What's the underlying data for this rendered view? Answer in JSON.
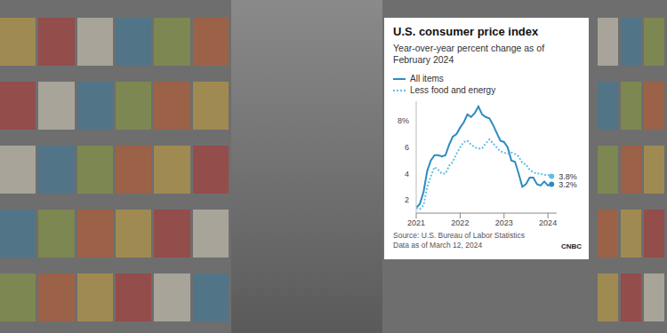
{
  "chart_data": {
    "type": "line",
    "title": "U.S. consumer price index",
    "subtitle": "Year-over-year percent change as of February 2024",
    "source": "Source: U.S. Bureau of Labor Statistics",
    "note": "Data as of March 12, 2024",
    "logo": "CNBC",
    "x": [
      2021.0,
      2021.083,
      2021.167,
      2021.25,
      2021.333,
      2021.417,
      2021.5,
      2021.583,
      2021.667,
      2021.75,
      2021.833,
      2021.917,
      2022.0,
      2022.083,
      2022.167,
      2022.25,
      2022.333,
      2022.417,
      2022.5,
      2022.583,
      2022.667,
      2022.75,
      2022.833,
      2022.917,
      2023.0,
      2023.083,
      2023.167,
      2023.25,
      2023.333,
      2023.417,
      2023.5,
      2023.583,
      2023.667,
      2023.75,
      2023.833,
      2023.917,
      2024.0,
      2024.083
    ],
    "series": [
      {
        "name": "All items",
        "color": "#2e8bc0",
        "line_style": "solid",
        "values": [
          1.4,
          1.7,
          2.6,
          4.2,
          5.0,
          5.4,
          5.4,
          5.3,
          5.4,
          6.2,
          6.8,
          7.0,
          7.5,
          7.9,
          8.5,
          8.3,
          8.6,
          9.1,
          8.5,
          8.3,
          8.2,
          7.7,
          7.1,
          6.5,
          6.4,
          6.0,
          5.0,
          4.9,
          4.0,
          3.0,
          3.2,
          3.7,
          3.7,
          3.2,
          3.1,
          3.4,
          3.1,
          3.2
        ]
      },
      {
        "name": "Less food and energy",
        "color": "#5fbfe3",
        "line_style": "dotted",
        "values": [
          1.4,
          1.3,
          1.6,
          3.0,
          3.8,
          4.5,
          4.3,
          4.0,
          4.0,
          4.6,
          4.9,
          5.5,
          6.0,
          6.4,
          6.5,
          6.2,
          6.0,
          5.9,
          5.9,
          6.3,
          6.6,
          6.3,
          6.0,
          5.7,
          5.6,
          5.5,
          5.6,
          5.5,
          5.3,
          4.8,
          4.7,
          4.3,
          4.1,
          4.0,
          4.0,
          3.9,
          3.9,
          3.8
        ]
      }
    ],
    "annotations": [
      {
        "text": "3.8%",
        "x": 2024.083,
        "y": 3.8,
        "color": "#5fbfe3"
      },
      {
        "text": "3.2%",
        "x": 2024.083,
        "y": 3.2,
        "color": "#2e8bc0"
      }
    ],
    "xlim": [
      2021,
      2024.2
    ],
    "xticks": [
      2021,
      2022,
      2023,
      2024
    ],
    "ylim": [
      1,
      9.5
    ],
    "yticks": [
      2,
      4,
      6,
      {
        "value": 8,
        "label": "8%"
      }
    ],
    "grid": false,
    "legend": "top"
  }
}
